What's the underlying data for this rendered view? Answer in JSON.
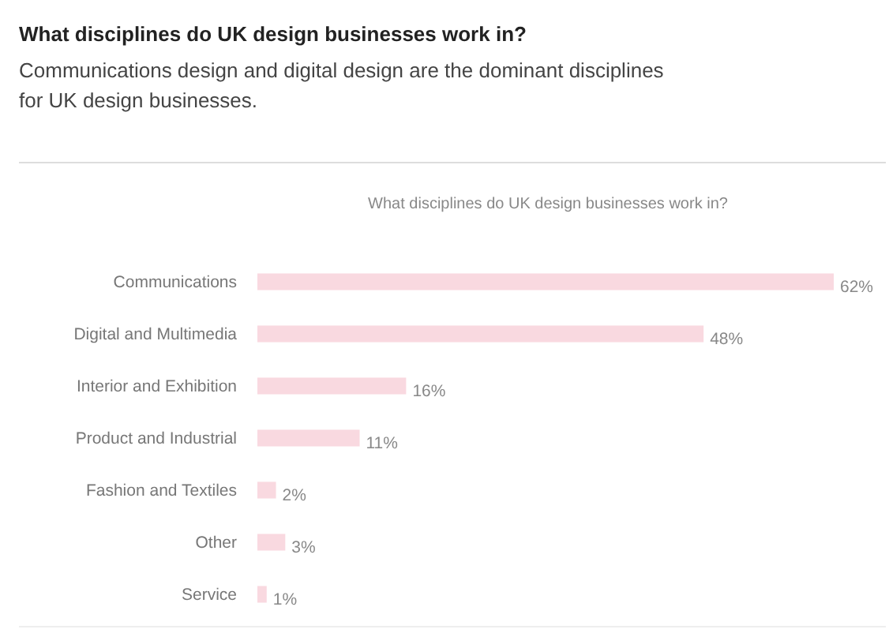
{
  "chart_data": {
    "type": "bar",
    "orientation": "horizontal",
    "title": "What disciplines do UK design businesses work in?",
    "subtitle": "Communications design and digital design are the dominant disciplines for UK design businesses.",
    "annotations": [
      "What disciplines do UK design businesses work in?"
    ],
    "categories": [
      "Communications",
      "Digital and Multimedia",
      "Interior and Exhibition",
      "Product and Industrial",
      "Fashion and Textiles",
      "Other",
      "Service"
    ],
    "values": [
      62,
      48,
      16,
      11,
      2,
      3,
      1
    ],
    "value_labels": [
      "62%",
      "48%",
      "16%",
      "11%",
      "2%",
      "3%",
      "1%"
    ],
    "color": "#f9d9e0"
  }
}
